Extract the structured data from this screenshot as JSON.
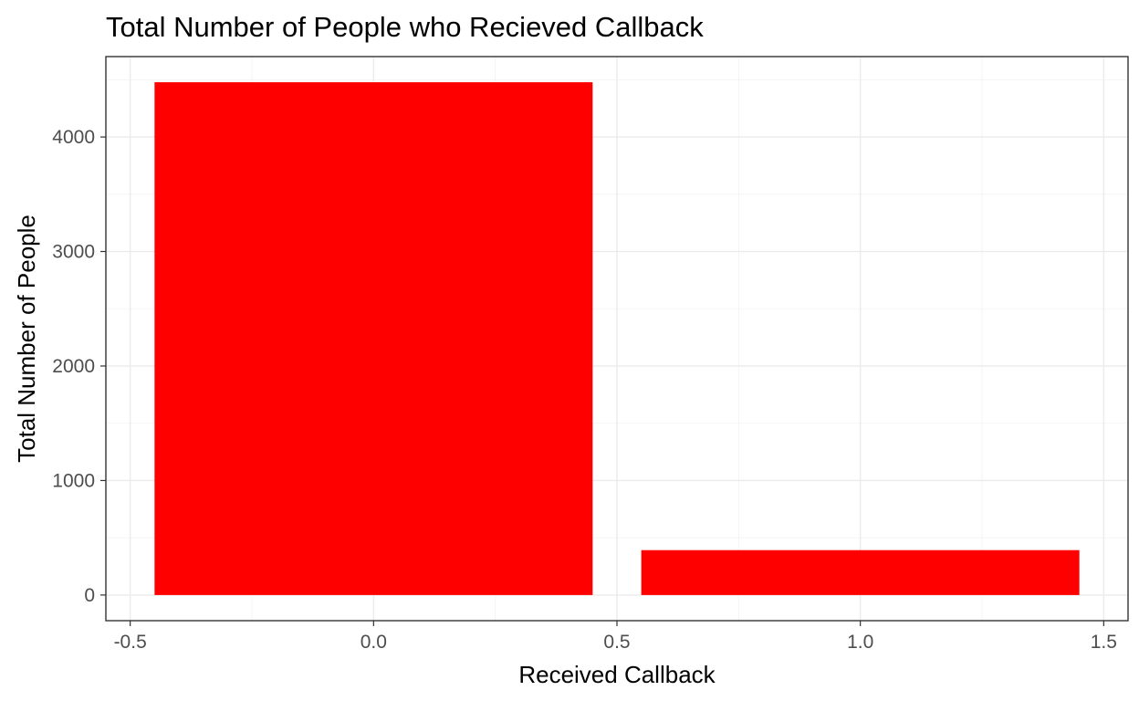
{
  "chart_data": {
    "type": "bar",
    "title": "Total Number of People who Recieved Callback",
    "xlabel": "Received Callback",
    "ylabel": "Total Number of People",
    "bars": [
      {
        "x": 0,
        "value": 4478,
        "width": 0.9
      },
      {
        "x": 1,
        "value": 392,
        "width": 0.9
      }
    ],
    "bar_color": "#ff0000",
    "xlim": [
      -0.55,
      1.55
    ],
    "ylim": [
      -224,
      4702
    ],
    "x_ticks": [
      {
        "value": -0.5,
        "label": "-0.5"
      },
      {
        "value": 0.0,
        "label": "0.0"
      },
      {
        "value": 0.5,
        "label": "0.5"
      },
      {
        "value": 1.0,
        "label": "1.0"
      },
      {
        "value": 1.5,
        "label": "1.5"
      }
    ],
    "y_ticks": [
      {
        "value": 0,
        "label": "0"
      },
      {
        "value": 1000,
        "label": "1000"
      },
      {
        "value": 2000,
        "label": "2000"
      },
      {
        "value": 3000,
        "label": "3000"
      },
      {
        "value": 4000,
        "label": "4000"
      }
    ],
    "grid": true,
    "legend": "none"
  }
}
